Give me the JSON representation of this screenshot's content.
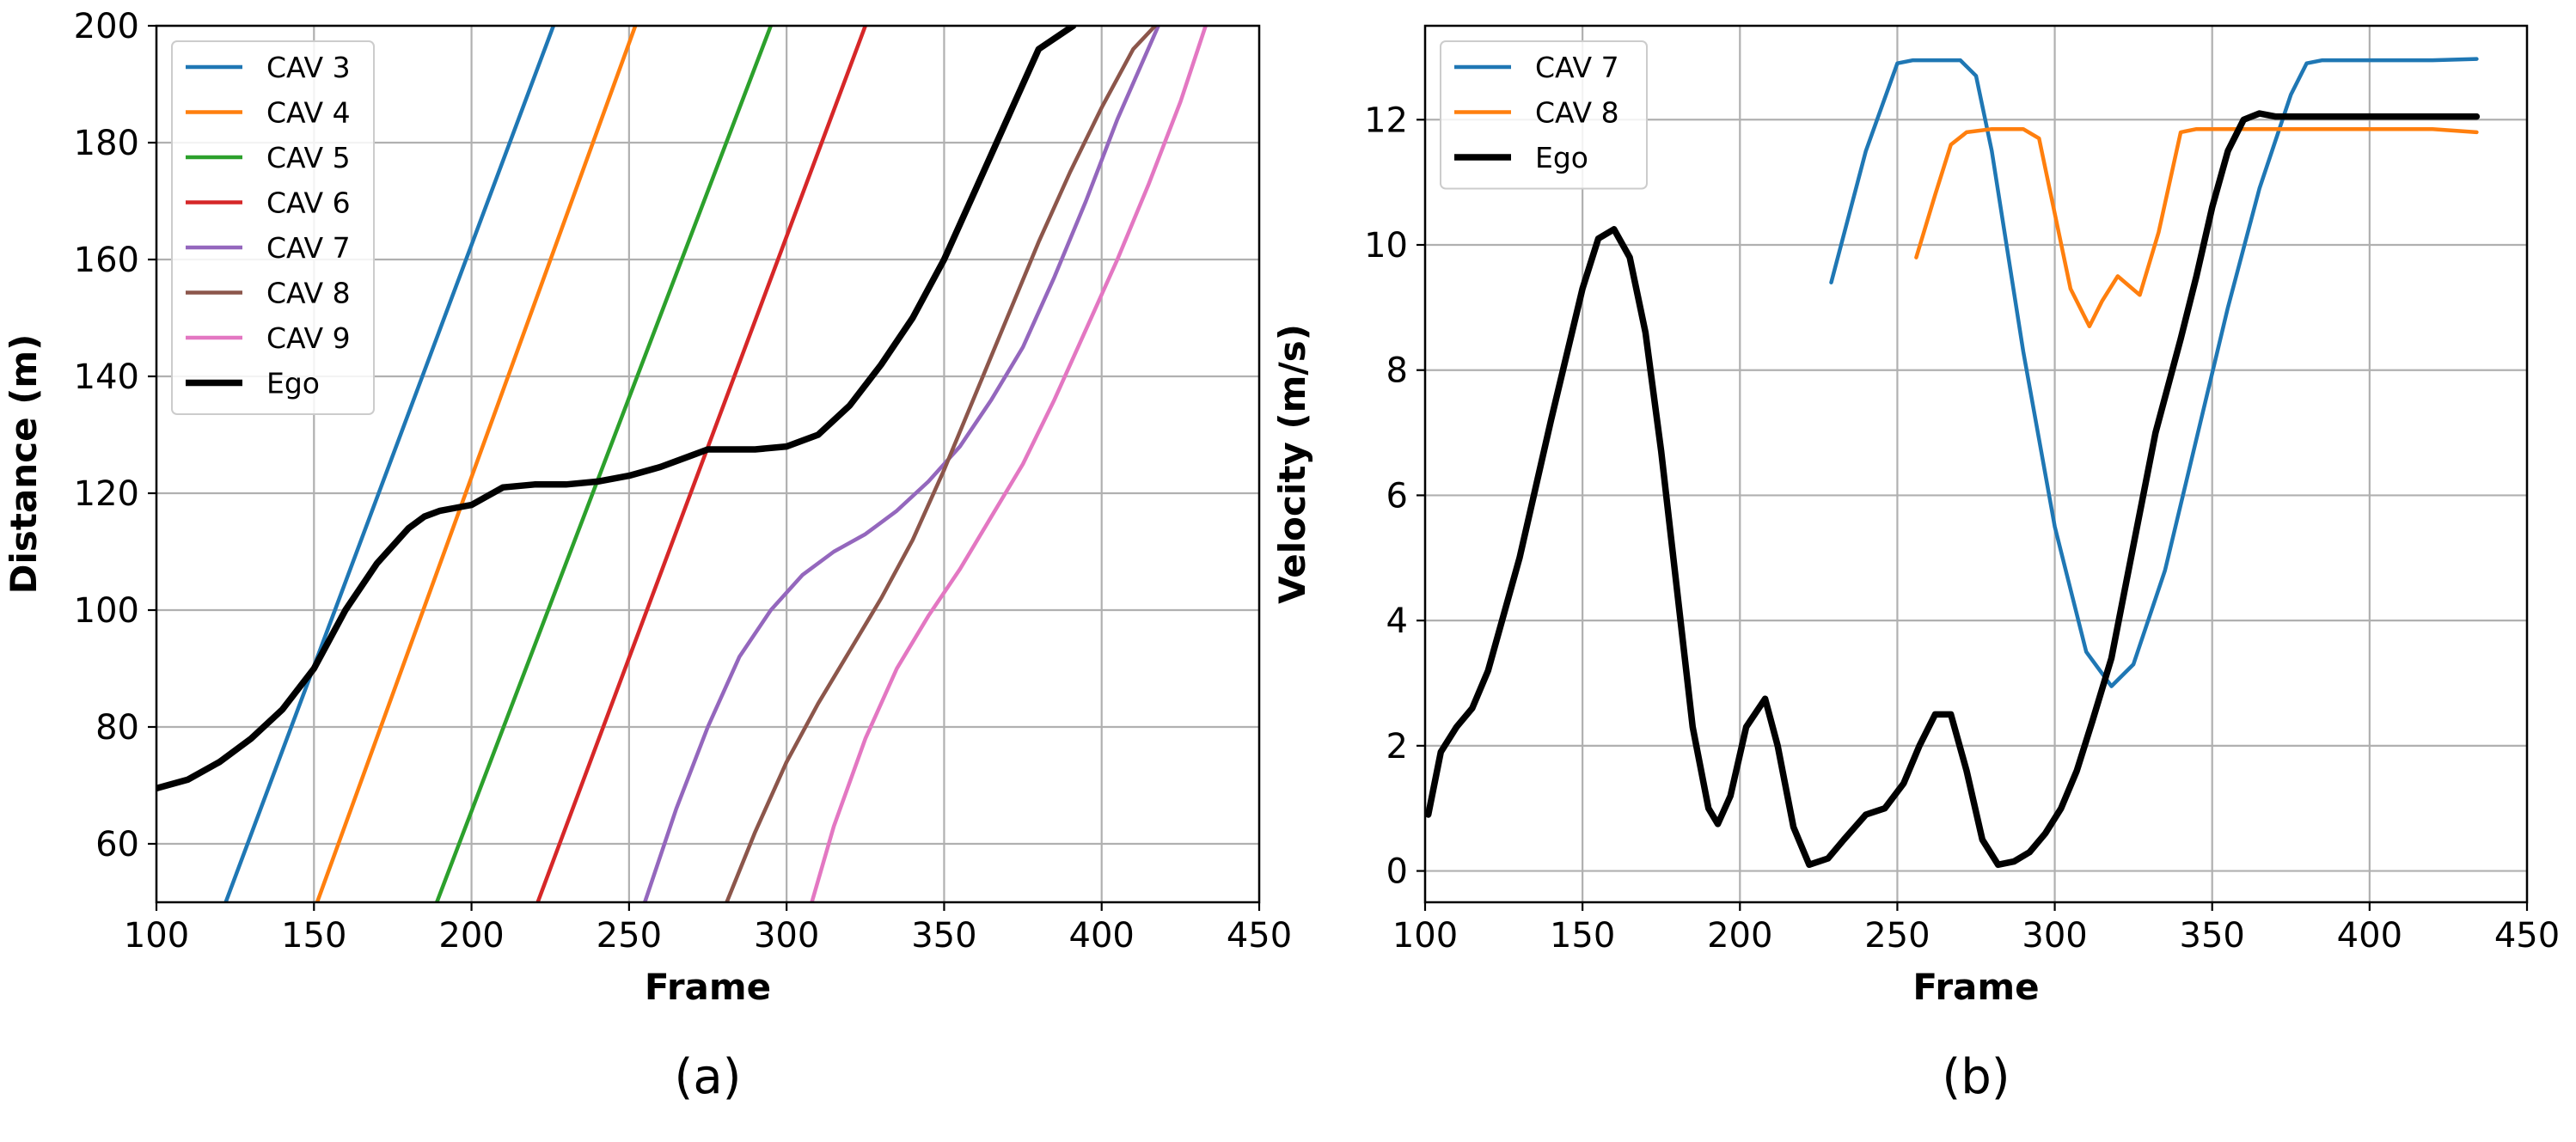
{
  "chart_data": [
    {
      "type": "line",
      "caption": "(a)",
      "xlabel": "Frame",
      "ylabel": "Distance (m)",
      "xlim": [
        100,
        450
      ],
      "ylim": [
        50,
        200
      ],
      "xticks": [
        100,
        150,
        200,
        250,
        300,
        350,
        400,
        450
      ],
      "yticks": [
        60,
        80,
        100,
        120,
        140,
        160,
        180,
        200
      ],
      "grid": true,
      "legend_position": "top-left",
      "series": [
        {
          "name": "CAV 3",
          "color": "#1f77b4",
          "x": [
            122,
            226
          ],
          "y": [
            50,
            200
          ]
        },
        {
          "name": "CAV 4",
          "color": "#ff7f0e",
          "x": [
            151,
            252
          ],
          "y": [
            50,
            200
          ]
        },
        {
          "name": "CAV 5",
          "color": "#2ca02c",
          "x": [
            189,
            295
          ],
          "y": [
            50,
            200
          ]
        },
        {
          "name": "CAV 6",
          "color": "#d62728",
          "x": [
            221,
            325
          ],
          "y": [
            50,
            200
          ]
        },
        {
          "name": "CAV 7",
          "color": "#9467bd",
          "x": [
            255,
            265,
            275,
            285,
            295,
            305,
            315,
            325,
            335,
            345,
            355,
            365,
            375,
            385,
            395,
            405,
            418
          ],
          "y": [
            50,
            66,
            80,
            92,
            100,
            106,
            110,
            113,
            117,
            122,
            128,
            136,
            145,
            157,
            170,
            184,
            200
          ]
        },
        {
          "name": "CAV 8",
          "color": "#8c564b",
          "x": [
            281,
            290,
            300,
            310,
            320,
            330,
            340,
            350,
            360,
            370,
            380,
            390,
            400,
            410,
            417
          ],
          "y": [
            50,
            62,
            74,
            84,
            93,
            102,
            112,
            124,
            137,
            150,
            163,
            175,
            186,
            196,
            200
          ]
        },
        {
          "name": "CAV 9",
          "color": "#e377c2",
          "x": [
            308,
            315,
            325,
            335,
            345,
            355,
            365,
            375,
            385,
            395,
            405,
            415,
            425,
            433
          ],
          "y": [
            50,
            63,
            78,
            90,
            99,
            107,
            116,
            125,
            136,
            148,
            160,
            173,
            187,
            200
          ]
        },
        {
          "name": "Ego",
          "color": "#000000",
          "x": [
            100,
            110,
            120,
            130,
            140,
            150,
            160,
            170,
            180,
            185,
            190,
            195,
            200,
            205,
            210,
            220,
            230,
            240,
            250,
            260,
            270,
            275,
            280,
            290,
            300,
            310,
            320,
            330,
            340,
            350,
            360,
            370,
            380,
            391
          ],
          "y": [
            69.5,
            71,
            74,
            78,
            83,
            90,
            100,
            108,
            114,
            116,
            117,
            117.5,
            118,
            119.5,
            121,
            121.5,
            121.5,
            122,
            123,
            124.5,
            126.5,
            127.5,
            127.5,
            127.5,
            128,
            130,
            135,
            142,
            150,
            160,
            172,
            184,
            196,
            200
          ]
        }
      ]
    },
    {
      "type": "line",
      "caption": "(b)",
      "xlabel": "Frame",
      "ylabel": "Velocity (m/s)",
      "xlim": [
        100,
        450
      ],
      "ylim": [
        -0.5,
        13.5
      ],
      "xticks": [
        100,
        150,
        200,
        250,
        300,
        350,
        400,
        450
      ],
      "yticks": [
        0,
        2,
        4,
        6,
        8,
        10,
        12
      ],
      "grid": true,
      "legend_position": "top-left",
      "series": [
        {
          "name": "CAV 7",
          "color": "#1f77b4",
          "x": [
            229,
            240,
            250,
            255,
            260,
            270,
            275,
            280,
            290,
            300,
            310,
            318,
            325,
            335,
            345,
            355,
            365,
            375,
            380,
            385,
            390,
            400,
            420,
            434
          ],
          "y": [
            9.4,
            11.5,
            12.9,
            12.95,
            12.95,
            12.95,
            12.7,
            11.5,
            8.3,
            5.5,
            3.5,
            2.95,
            3.3,
            4.8,
            6.9,
            9.0,
            10.9,
            12.4,
            12.9,
            12.95,
            12.95,
            12.95,
            12.95,
            12.97
          ]
        },
        {
          "name": "CAV 8",
          "color": "#ff7f0e",
          "x": [
            256,
            262,
            267,
            272,
            280,
            290,
            295,
            300,
            305,
            311,
            315,
            320,
            327,
            333,
            340,
            345,
            360,
            380,
            400,
            420,
            434
          ],
          "y": [
            9.8,
            10.8,
            11.6,
            11.8,
            11.85,
            11.85,
            11.7,
            10.5,
            9.3,
            8.7,
            9.1,
            9.5,
            9.2,
            10.2,
            11.8,
            11.85,
            11.85,
            11.85,
            11.85,
            11.85,
            11.8
          ]
        },
        {
          "name": "Ego",
          "color": "#000000",
          "x": [
            101,
            105,
            110,
            115,
            120,
            130,
            140,
            150,
            155,
            160,
            165,
            170,
            175,
            180,
            185,
            190,
            193,
            197,
            202,
            208,
            212,
            217,
            222,
            228,
            233,
            240,
            246,
            252,
            257,
            262,
            267,
            272,
            277,
            282,
            287,
            292,
            297,
            302,
            307,
            312,
            318,
            325,
            332,
            340,
            345,
            350,
            355,
            360,
            365,
            370,
            380,
            400,
            420,
            434
          ],
          "y": [
            0.9,
            1.9,
            2.3,
            2.6,
            3.2,
            5.0,
            7.2,
            9.3,
            10.1,
            10.25,
            9.8,
            8.6,
            6.7,
            4.5,
            2.3,
            1.0,
            0.75,
            1.2,
            2.3,
            2.75,
            2.0,
            0.7,
            0.1,
            0.2,
            0.5,
            0.9,
            1.0,
            1.4,
            2.0,
            2.5,
            2.5,
            1.6,
            0.5,
            0.1,
            0.15,
            0.3,
            0.6,
            1.0,
            1.6,
            2.4,
            3.4,
            5.2,
            7.0,
            8.5,
            9.5,
            10.6,
            11.5,
            12.0,
            12.1,
            12.05,
            12.05,
            12.05,
            12.05,
            12.05
          ]
        }
      ]
    }
  ]
}
